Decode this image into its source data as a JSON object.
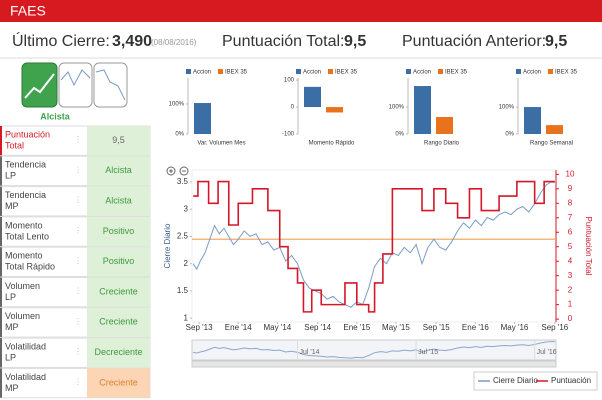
{
  "header": {
    "title": "FAES"
  },
  "summary": [
    {
      "label": "Último Cierre:",
      "value": "3,490",
      "note": "(08/08/2016)"
    },
    {
      "label": "Puntuación Total:",
      "value": "9,5"
    },
    {
      "label": "Puntuación Anterior:",
      "value": "9,5"
    }
  ],
  "indicator": {
    "label": "Alcista"
  },
  "table": {
    "rows": [
      {
        "label": [
          "Puntuación",
          "Total"
        ],
        "value": "9,5"
      },
      {
        "label": [
          "Tendencia",
          "LP"
        ],
        "value": "Alcista"
      },
      {
        "label": [
          "Tendencia",
          "MP"
        ],
        "value": "Alcista"
      },
      {
        "label": [
          "Momento",
          "Total Lento"
        ],
        "value": "Positivo"
      },
      {
        "label": [
          "Momento",
          "Total Rápido"
        ],
        "value": "Positivo"
      },
      {
        "label": [
          "Volumen",
          "LP"
        ],
        "value": "Creciente"
      },
      {
        "label": [
          "Volumen",
          "MP"
        ],
        "value": "Creciente"
      },
      {
        "label": [
          "Volatilidad",
          "LP"
        ],
        "value": "Decreciente"
      },
      {
        "label": [
          "Volatilidad",
          "MP"
        ],
        "value": "Creciente"
      }
    ]
  },
  "chart_data": [
    {
      "type": "bar",
      "xlabel": "Var. Volumen Mes",
      "ylim": [
        0,
        173
      ],
      "yticks": [
        {
          "value": 0,
          "label": "0%"
        },
        {
          "value": 100,
          "label": "100%"
        }
      ],
      "series": [
        {
          "name": "Accion",
          "color": "#3a6ea5",
          "values": [
            103
          ]
        },
        {
          "name": "IBEX 35",
          "color": "#e8731c",
          "values": [
            0
          ]
        }
      ]
    },
    {
      "type": "bar",
      "xlabel": "Momento Rápido",
      "ylim": [
        -100,
        93
      ],
      "yticks": [
        -100,
        0,
        100
      ],
      "series": [
        {
          "name": "Accion",
          "color": "#3a6ea5",
          "values": [
            75
          ]
        },
        {
          "name": "IBEX 35",
          "color": "#e8731c",
          "values": [
            -20
          ]
        }
      ]
    },
    {
      "type": "bar",
      "xlabel": "Rango Diario",
      "ylim": [
        0,
        193
      ],
      "yticks": [
        {
          "value": 0,
          "label": "0%"
        },
        {
          "value": 100,
          "label": "100%"
        }
      ],
      "series": [
        {
          "name": "Accion",
          "color": "#3a6ea5",
          "values": [
            178
          ]
        },
        {
          "name": "IBEX 35",
          "color": "#e8731c",
          "values": [
            63
          ]
        }
      ]
    },
    {
      "type": "bar",
      "xlabel": "Rango Semanal",
      "ylim": [
        0,
        193
      ],
      "yticks": [
        {
          "value": 0,
          "label": "0%"
        },
        {
          "value": 100,
          "label": "100%"
        }
      ],
      "series": [
        {
          "name": "Accion",
          "color": "#3a6ea5",
          "values": [
            100
          ]
        },
        {
          "name": "IBEX 35",
          "color": "#e8731c",
          "values": [
            33
          ]
        }
      ]
    },
    {
      "type": "line",
      "ylabel": "Cierre Diario",
      "y2label": "Puntuación Total",
      "xlim": [
        2013.61,
        2016.68
      ],
      "ylim": [
        0.93,
        3.72
      ],
      "y2lim": [
        -0.2,
        10.3
      ],
      "xticks": [
        {
          "value": 2013.67,
          "label": "Sep '13"
        },
        {
          "value": 2014.0,
          "label": "Ene '14"
        },
        {
          "value": 2014.33,
          "label": "May '14"
        },
        {
          "value": 2014.67,
          "label": "Sep '14"
        },
        {
          "value": 2015.0,
          "label": "Ene '15"
        },
        {
          "value": 2015.33,
          "label": "May '15"
        },
        {
          "value": 2015.67,
          "label": "Sep '15"
        },
        {
          "value": 2016.0,
          "label": "Ene '16"
        },
        {
          "value": 2016.33,
          "label": "May '16"
        },
        {
          "value": 2016.67,
          "label": "Sep '16"
        }
      ],
      "yticks": [
        1,
        1.5,
        2,
        2.5,
        3,
        3.5
      ],
      "y2ticks": [
        0,
        1,
        2,
        3,
        4,
        5,
        6,
        7,
        8,
        9,
        10
      ],
      "threshold": 2.45,
      "threshold_color": "#f0a050",
      "navigator_ticks": [
        {
          "value": 2014.5,
          "label": "Jul '14"
        },
        {
          "value": 2015.5,
          "label": "Jul '15"
        },
        {
          "value": 2016.5,
          "label": "Jul '16"
        }
      ],
      "series": [
        {
          "name": "Cierre Diario",
          "color": "#7a9cc6",
          "x": [
            2013.62,
            2013.65,
            2013.68,
            2013.72,
            2013.76,
            2013.8,
            2013.84,
            2013.88,
            2013.92,
            2013.96,
            2014.0,
            2014.05,
            2014.1,
            2014.15,
            2014.2,
            2014.25,
            2014.3,
            2014.35,
            2014.4,
            2014.45,
            2014.5,
            2014.55,
            2014.6,
            2014.65,
            2014.7,
            2014.75,
            2014.8,
            2014.85,
            2014.9,
            2014.95,
            2015.0,
            2015.05,
            2015.1,
            2015.15,
            2015.2,
            2015.25,
            2015.3,
            2015.35,
            2015.4,
            2015.45,
            2015.5,
            2015.55,
            2015.6,
            2015.65,
            2015.7,
            2015.75,
            2015.8,
            2015.85,
            2015.9,
            2015.95,
            2016.0,
            2016.05,
            2016.1,
            2016.15,
            2016.2,
            2016.25,
            2016.3,
            2016.35,
            2016.4,
            2016.45,
            2016.5,
            2016.55,
            2016.6,
            2016.64,
            2016.67
          ],
          "values": [
            2.0,
            1.9,
            2.05,
            2.2,
            2.45,
            2.7,
            2.55,
            2.65,
            2.5,
            2.35,
            2.45,
            2.6,
            2.5,
            2.55,
            2.35,
            2.4,
            2.25,
            2.3,
            2.05,
            2.15,
            2.0,
            1.7,
            1.55,
            1.5,
            1.45,
            1.35,
            1.4,
            1.3,
            1.25,
            1.2,
            1.3,
            1.25,
            1.55,
            1.95,
            2.1,
            2.0,
            2.2,
            2.15,
            2.3,
            2.2,
            2.35,
            2.0,
            2.3,
            2.45,
            2.3,
            2.25,
            2.4,
            2.6,
            2.75,
            2.65,
            2.8,
            2.7,
            2.85,
            2.8,
            2.9,
            2.95,
            2.9,
            3.0,
            3.05,
            2.95,
            3.1,
            3.3,
            3.45,
            3.5,
            3.49
          ]
        },
        {
          "name": "Puntuación",
          "color": "#d3182a",
          "axis": "y2",
          "step": true,
          "x": [
            2013.62,
            2013.66,
            2013.75,
            2013.83,
            2013.92,
            2014.0,
            2014.12,
            2014.25,
            2014.35,
            2014.42,
            2014.5,
            2014.55,
            2014.62,
            2014.7,
            2014.8,
            2014.9,
            2015.0,
            2015.1,
            2015.15,
            2015.22,
            2015.3,
            2015.55,
            2015.65,
            2015.75,
            2015.85,
            2015.95,
            2016.05,
            2016.2,
            2016.35,
            2016.5,
            2016.58,
            2016.67
          ],
          "values": [
            8.5,
            9.5,
            8,
            9.5,
            6.5,
            8,
            9,
            7.5,
            5,
            3.5,
            2.5,
            0.5,
            2,
            1,
            1,
            2.5,
            1,
            0.5,
            2.5,
            4.5,
            9,
            7.5,
            9,
            8,
            7,
            9,
            7.5,
            8.5,
            9.5,
            8,
            9.5,
            9.5
          ]
        }
      ]
    }
  ]
}
